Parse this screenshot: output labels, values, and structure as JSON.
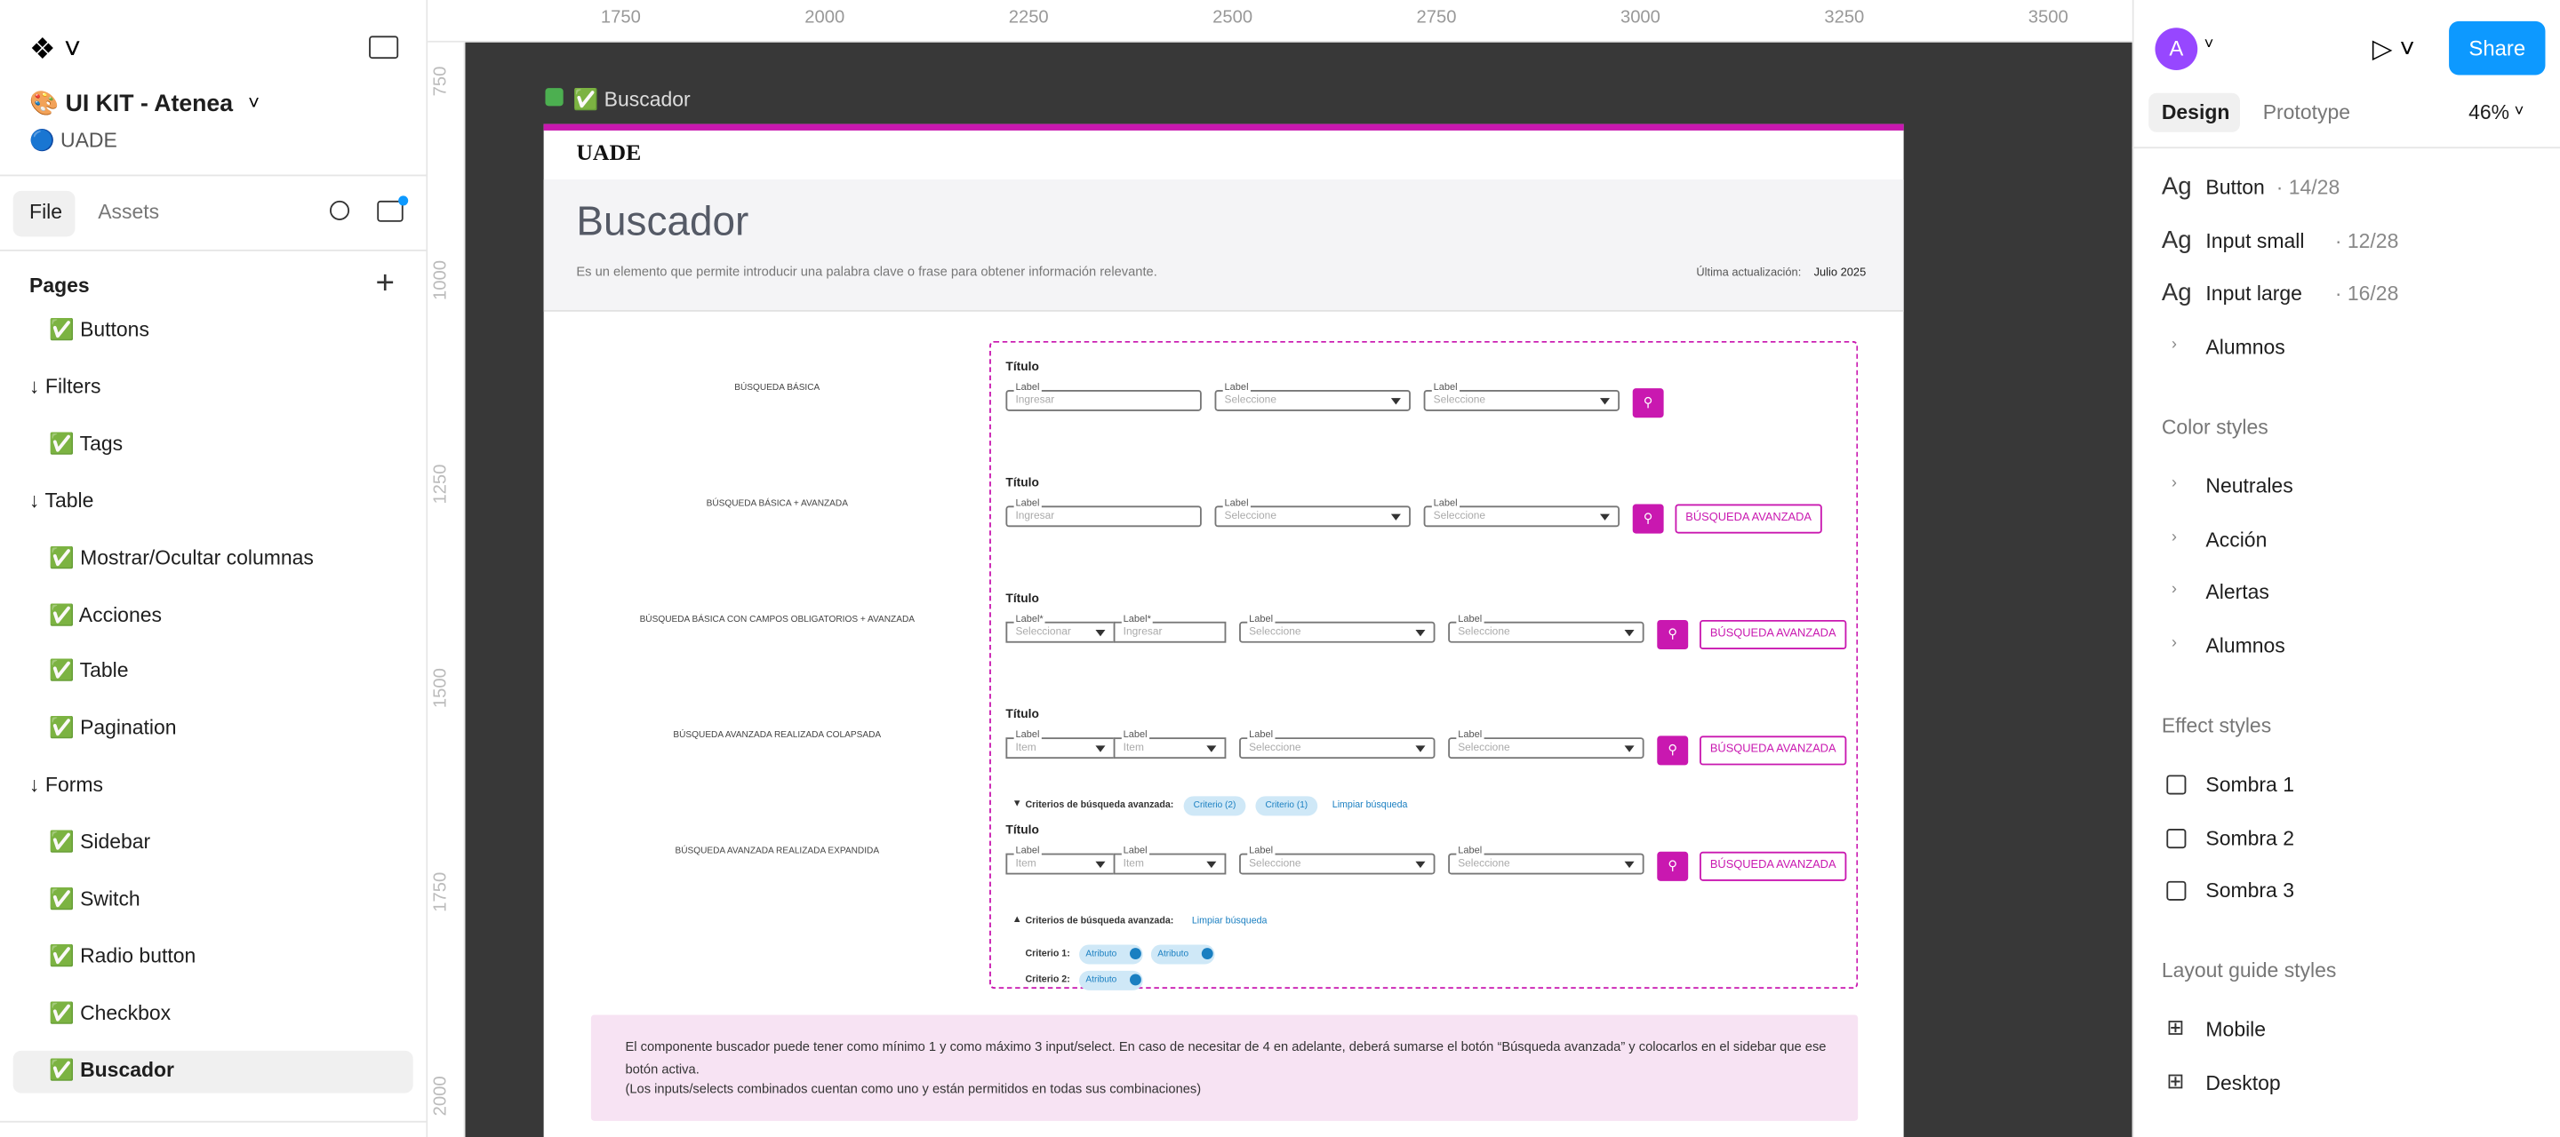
{
  "file_menu": {
    "title": "🎨 UI KIT - Atenea",
    "team": "🔵 UADE",
    "tabs": [
      "File",
      "Assets"
    ],
    "pages_heading": "Pages",
    "pages": [
      "✅ Buttons",
      "↓ Filters",
      "✅ Tags",
      "↓ Table",
      "✅ Mostrar/Ocultar columnas",
      "✅ Acciones",
      "✅ Table",
      "✅ Pagination",
      "↓ Forms",
      "✅ Sidebar",
      "✅ Switch",
      "✅ Radio button",
      "✅ Checkbox",
      "✅ Buscador"
    ],
    "selected_page": "✅ Buscador"
  },
  "rulers": {
    "top": [
      "1750",
      "2000",
      "2250",
      "2500",
      "2750",
      "3000",
      "3250",
      "3500"
    ],
    "left": [
      "750",
      "1000",
      "1250",
      "1500",
      "1750",
      "2000"
    ]
  },
  "canvas": {
    "frame_label": "✅ Buscador",
    "brand": "UADE",
    "title": "Buscador",
    "description": "Es un elemento que permite introducir una palabra clave o frase para obtener información relevante.",
    "updated_label": "Última actualización:",
    "updated_value": "Julio 2025",
    "variants": [
      {
        "label": "BÚSQUEDA BÁSICA",
        "title": "Título",
        "fields": [
          {
            "label": "Label",
            "placeholder": "Ingresar",
            "kind": "input"
          },
          {
            "label": "Label",
            "placeholder": "Seleccione",
            "kind": "select"
          },
          {
            "label": "Label",
            "placeholder": "Seleccione",
            "kind": "select"
          }
        ]
      },
      {
        "label": "BÚSQUEDA BÁSICA + AVANZADA",
        "title": "Título",
        "fields": [
          {
            "label": "Label",
            "placeholder": "Ingresar",
            "kind": "input"
          },
          {
            "label": "Label",
            "placeholder": "Seleccione",
            "kind": "select"
          },
          {
            "label": "Label",
            "placeholder": "Seleccione",
            "kind": "select"
          }
        ],
        "advanced": "BÚSQUEDA AVANZADA"
      },
      {
        "label": "BÚSQUEDA BÁSICA CON CAMPOS OBLIGATORIOS + AVANZADA",
        "title": "Título",
        "fields": [
          {
            "combo": [
              {
                "label": "Label*",
                "placeholder": "Seleccionar",
                "kind": "select"
              },
              {
                "label": "Label*",
                "placeholder": "Ingresar",
                "kind": "input"
              }
            ]
          },
          {
            "label": "Label",
            "placeholder": "Seleccione",
            "kind": "select"
          },
          {
            "label": "Label",
            "placeholder": "Seleccione",
            "kind": "select"
          }
        ],
        "advanced": "BÚSQUEDA AVANZADA"
      },
      {
        "label": "BÚSQUEDA AVANZADA REALIZADA COLAPSADA",
        "title": "Título",
        "fields": [
          {
            "combo": [
              {
                "label": "Label",
                "placeholder": "Item",
                "kind": "select"
              },
              {
                "label": "Label",
                "placeholder": "Item",
                "kind": "select"
              }
            ]
          },
          {
            "label": "Label",
            "placeholder": "Seleccione",
            "kind": "select"
          },
          {
            "label": "Label",
            "placeholder": "Seleccione",
            "kind": "select"
          }
        ],
        "advanced": "BÚSQUEDA AVANZADA",
        "criteria": {
          "heading": "Criterios de búsqueda avanzada:",
          "chips": [
            "Criterio  (2)",
            "Criterio  (1)"
          ],
          "clear": "Limpiar búsqueda"
        }
      },
      {
        "label": "BÚSQUEDA AVANZADA REALIZADA EXPANDIDA",
        "title": "Título",
        "fields": [
          {
            "combo": [
              {
                "label": "Label",
                "placeholder": "Item",
                "kind": "select"
              },
              {
                "label": "Label",
                "placeholder": "Item",
                "kind": "select"
              }
            ]
          },
          {
            "label": "Label",
            "placeholder": "Seleccione",
            "kind": "select"
          },
          {
            "label": "Label",
            "placeholder": "Seleccione",
            "kind": "select"
          }
        ],
        "advanced": "BÚSQUEDA AVANZADA",
        "criteria": {
          "heading": "Criterios de búsqueda avanzada:",
          "clear": "Limpiar búsqueda",
          "lines": [
            {
              "label": "Criterio 1:",
              "chips": [
                "Atributo",
                "Atributo"
              ]
            },
            {
              "label": "Criterio 2:",
              "chips": [
                "Atributo"
              ]
            }
          ]
        }
      }
    ],
    "note": [
      "El componente buscador puede tener como mínimo 1 y como máximo 3 input/select. En caso de necesitar de 4 en adelante, deberá sumarse el botón “Búsqueda avanzada” y colocarlos en el sidebar que ese botón activa.",
      "(Los inputs/selects combinados cuentan como uno y están permitidos en todas sus combinaciones)"
    ]
  },
  "design_panel": {
    "avatar": "A",
    "share": "Share",
    "tabs": [
      "Design",
      "Prototype"
    ],
    "zoom": "46%",
    "text_styles": [
      {
        "name": "Button",
        "meta": " · 14/28"
      },
      {
        "name": "Input small",
        "meta": " · 12/28"
      },
      {
        "name": "Input large",
        "meta": " · 16/28"
      }
    ],
    "text_group": "Alumnos",
    "color_heading": "Color styles",
    "colors": [
      "Neutrales",
      "Acción",
      "Alertas",
      "Alumnos"
    ],
    "effect_heading": "Effect styles",
    "effects": [
      "Sombra 1",
      "Sombra 2",
      "Sombra 3"
    ],
    "layout_heading": "Layout guide styles",
    "layouts": [
      "Mobile",
      "Desktop"
    ]
  }
}
